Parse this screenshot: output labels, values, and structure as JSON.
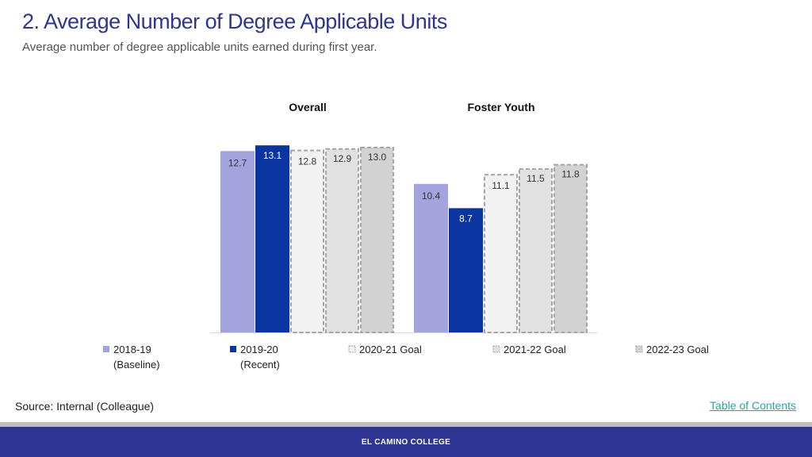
{
  "header": {
    "title": "2. Average Number of Degree Applicable Units",
    "subtitle": "Average number of degree applicable units earned during first year."
  },
  "chart_data": {
    "type": "bar",
    "groups": [
      "Overall",
      "Foster Youth"
    ],
    "series": [
      {
        "name": "2018-19",
        "name_line2": "(Baseline)",
        "values": [
          12.7,
          10.4
        ],
        "color": "#a3a3dd",
        "style": "solid"
      },
      {
        "name": "2019-20",
        "name_line2": "(Recent)",
        "values": [
          13.1,
          8.7
        ],
        "color": "#0a34a0",
        "style": "solid"
      },
      {
        "name": "2020-21 Goal",
        "name_line2": "",
        "values": [
          12.8,
          11.1
        ],
        "color": "#f2f2f2",
        "style": "dashed"
      },
      {
        "name": "2021-22 Goal",
        "name_line2": "",
        "values": [
          12.9,
          11.5
        ],
        "color": "#e1e1e1",
        "style": "dashed"
      },
      {
        "name": "2022-23 Goal",
        "name_line2": "",
        "values": [
          13.0,
          11.8
        ],
        "color": "#d2d2d2",
        "style": "dashed"
      }
    ],
    "value_labels": [
      [
        "12.7",
        "13.1",
        "12.8",
        "12.9",
        "13.0"
      ],
      [
        "10.4",
        "8.7",
        "11.1",
        "11.5",
        "11.8"
      ]
    ],
    "ylim": [
      0,
      14
    ],
    "grid": false,
    "legend_position": "bottom"
  },
  "footer": {
    "source": "Source: Internal (Colleague)",
    "toc_link": "Table of Contents",
    "college": "EL CAMINO COLLEGE"
  }
}
